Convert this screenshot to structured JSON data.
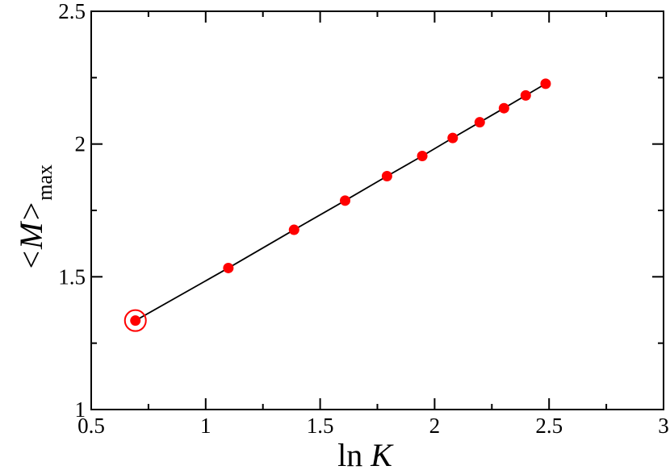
{
  "chart_data": {
    "type": "line",
    "x": [
      0.693,
      1.099,
      1.386,
      1.609,
      1.792,
      1.946,
      2.079,
      2.197,
      2.303,
      2.398,
      2.485
    ],
    "series": [
      {
        "values": [
          1.335,
          1.533,
          1.677,
          1.787,
          1.879,
          1.955,
          2.023,
          2.082,
          2.135,
          2.183,
          2.227
        ],
        "color": "#ff0000"
      }
    ],
    "highlighted_point_index": 0,
    "line_color": "#000000",
    "marker_color": "#ff0000",
    "xlim": [
      0.5,
      3
    ],
    "ylim": [
      1,
      2.5
    ],
    "xticks": [
      "0.5",
      "1",
      "1.5",
      "2",
      "2.5",
      "3"
    ],
    "yticks": [
      "1",
      "1.5",
      "2",
      "2.5"
    ],
    "xlabel_main": "ln ",
    "xlabel_var": "K",
    "ylabel_main": "<M>",
    "ylabel_sub": "max",
    "grid": false
  }
}
